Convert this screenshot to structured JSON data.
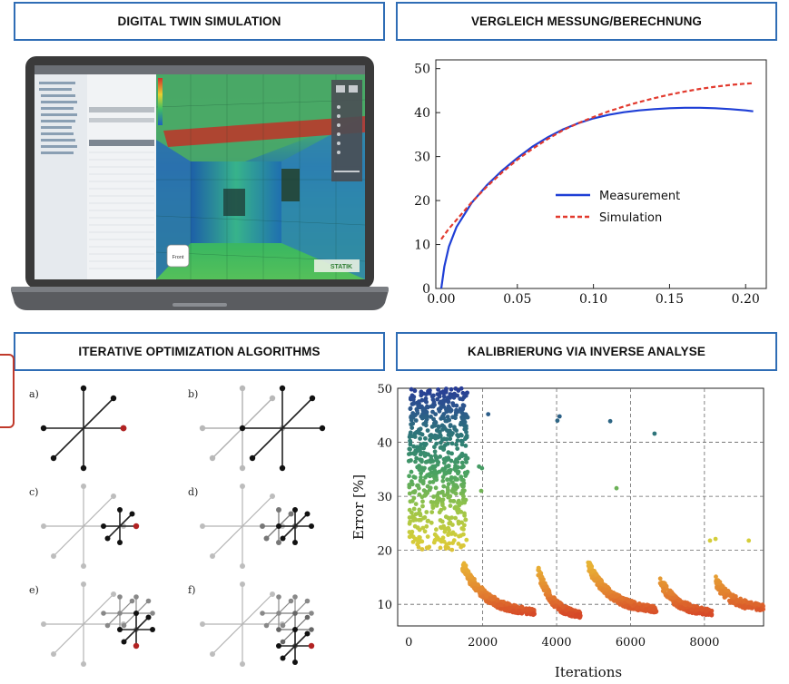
{
  "panels": {
    "top_left": "DIGITAL TWIN SIMULATION",
    "top_right": "VERGLEICH MESSUNG/BERECHNUNG",
    "bottom_left": "ITERATIVE OPTIMIZATION ALGORITHMS",
    "bottom_right": "KALIBRIERUNG VIA INVERSE ANALYSE"
  },
  "laptop": {
    "front_button": "Front",
    "logo_text": "STATIK"
  },
  "diagram_labels": [
    "a)",
    "b)",
    "c)",
    "d)",
    "e)",
    "f)"
  ],
  "colors": {
    "frame": "#2f6db5",
    "measurement": "#1f3fd6",
    "simulation": "#e23a2e",
    "highlight_node": "#b22222"
  },
  "chart_data": [
    {
      "type": "line",
      "title": "",
      "xlabel": "",
      "ylabel": "",
      "xlim": [
        0,
        0.21
      ],
      "ylim": [
        0,
        52
      ],
      "xticks": [
        "0.00",
        "0.05",
        "0.10",
        "0.15",
        "0.20"
      ],
      "yticks": [
        "0",
        "10",
        "20",
        "30",
        "40",
        "50"
      ],
      "legend_position": "center-right",
      "series": [
        {
          "name": "Measurement",
          "style": "solid",
          "color": "#1f3fd6",
          "x": [
            0,
            0.002,
            0.005,
            0.01,
            0.02,
            0.03,
            0.04,
            0.05,
            0.06,
            0.07,
            0.08,
            0.09,
            0.1,
            0.11,
            0.12,
            0.13,
            0.14,
            0.15,
            0.16,
            0.17,
            0.18,
            0.19,
            0.2,
            0.205
          ],
          "y": [
            0,
            5,
            9.5,
            14,
            19.5,
            23.5,
            26.8,
            29.7,
            32.3,
            34.4,
            36.2,
            37.6,
            38.7,
            39.5,
            40.1,
            40.5,
            40.8,
            41.0,
            41.1,
            41.1,
            41.0,
            40.8,
            40.5,
            40.3
          ]
        },
        {
          "name": "Simulation",
          "style": "dashed",
          "color": "#e23a2e",
          "x": [
            0,
            0.002,
            0.005,
            0.01,
            0.02,
            0.03,
            0.04,
            0.05,
            0.06,
            0.07,
            0.08,
            0.09,
            0.1,
            0.11,
            0.12,
            0.13,
            0.14,
            0.15,
            0.16,
            0.17,
            0.18,
            0.19,
            0.2,
            0.205
          ],
          "y": [
            11.2,
            12.2,
            13.6,
            15.6,
            19.6,
            23.2,
            26.4,
            29.3,
            31.8,
            34.0,
            36.0,
            37.6,
            39.0,
            40.3,
            41.4,
            42.4,
            43.3,
            44.1,
            44.8,
            45.4,
            45.9,
            46.3,
            46.6,
            46.7
          ]
        }
      ]
    },
    {
      "type": "scatter",
      "title": "",
      "xlabel": "Iterations",
      "ylabel": "Error [%]",
      "xlim": [
        -300,
        9600
      ],
      "ylim": [
        6,
        50
      ],
      "xticks": [
        "0",
        "2000",
        "4000",
        "6000",
        "8000"
      ],
      "yticks": [
        "10",
        "20",
        "30",
        "40",
        "50"
      ],
      "grid": "dashed",
      "colormap": "viridis-to-red by error (blue high, red low)",
      "clusters": [
        {
          "x_range": [
            0,
            1600
          ],
          "y_range": [
            20,
            50
          ],
          "n": 650,
          "tail": "decay"
        },
        {
          "x_range": [
            1450,
            3400
          ],
          "decay_from": 17,
          "to": 8,
          "n": 340
        },
        {
          "x_range": [
            3500,
            4650
          ],
          "decay_from": 16,
          "to": 7.5,
          "n": 230
        },
        {
          "x_range": [
            4850,
            6700
          ],
          "decay_from": 17,
          "to": 8.5,
          "n": 380
        },
        {
          "x_range": [
            6800,
            8200
          ],
          "decay_from": 14,
          "to": 8,
          "n": 220
        },
        {
          "x_range": [
            8300,
            9600
          ],
          "decay_from": 14,
          "to": 9,
          "n": 160
        }
      ],
      "outliers": [
        [
          2150,
          45.2
        ],
        [
          4020,
          44.0
        ],
        [
          4080,
          44.8
        ],
        [
          5450,
          43.9
        ],
        [
          5620,
          31.5
        ],
        [
          6650,
          41.6
        ],
        [
          1900,
          35.5
        ],
        [
          1980,
          35.2
        ],
        [
          1960,
          31.0
        ],
        [
          8150,
          21.8
        ],
        [
          8300,
          22.1
        ],
        [
          9200,
          21.8
        ]
      ]
    }
  ]
}
